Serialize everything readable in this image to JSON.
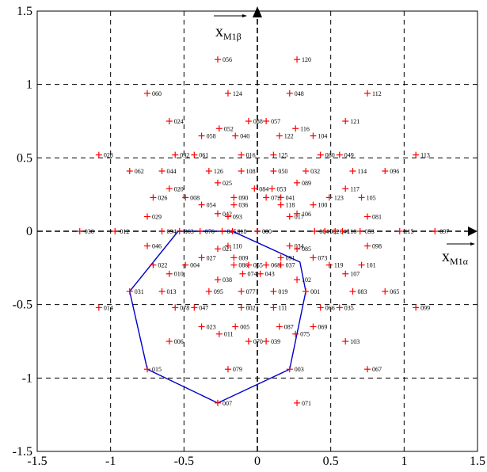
{
  "chart_data": {
    "type": "scatter",
    "xlim": [
      -1.5,
      1.5
    ],
    "ylim": [
      -1.5,
      1.5
    ],
    "x_ticks": [
      -1.5,
      -1,
      -0.5,
      0,
      0.5,
      1,
      1.5
    ],
    "x_tick_labels": [
      "-1.5",
      "-1",
      "-0.5",
      "0",
      "0.5",
      "1",
      "1.5"
    ],
    "y_ticks": [
      -1.5,
      -1,
      -0.5,
      0,
      0.5,
      1,
      1.5
    ],
    "y_tick_labels": [
      "-1.5",
      "-1",
      "-0.5",
      "0",
      "0.5",
      "1",
      "1.5"
    ],
    "grid": true,
    "grid_style": "dashed",
    "axis_x_label": {
      "main": "x",
      "sub": "M1α"
    },
    "axis_y_label": {
      "main": "x",
      "sub": "M1β"
    },
    "colors": {
      "points": "#ff0000",
      "polygon": "#0000cc",
      "grid": "#000000",
      "axes": "#000000"
    },
    "polygon": [
      [
        -0.54,
        0.0
      ],
      [
        -0.17,
        0.0
      ],
      [
        0.29,
        -0.21
      ],
      [
        0.33,
        -0.41
      ],
      [
        0.22,
        -0.94
      ],
      [
        -0.27,
        -1.17
      ],
      [
        -0.75,
        -0.94
      ],
      [
        -0.87,
        -0.41
      ]
    ],
    "points": [
      {
        "label": "120",
        "x": 0.27,
        "y": 1.17
      },
      {
        "label": "056",
        "x": -0.27,
        "y": 1.17
      },
      {
        "label": "060",
        "x": -0.75,
        "y": 0.94
      },
      {
        "label": "124",
        "x": -0.2,
        "y": 0.94
      },
      {
        "label": "048",
        "x": 0.22,
        "y": 0.94
      },
      {
        "label": "112",
        "x": 0.75,
        "y": 0.94
      },
      {
        "label": "024",
        "x": -0.6,
        "y": 0.75
      },
      {
        "label": "088",
        "x": -0.06,
        "y": 0.75
      },
      {
        "label": "057",
        "x": 0.06,
        "y": 0.75
      },
      {
        "label": "121",
        "x": 0.6,
        "y": 0.75
      },
      {
        "label": "052",
        "x": -0.26,
        "y": 0.7
      },
      {
        "label": "116",
        "x": 0.26,
        "y": 0.7
      },
      {
        "label": "058",
        "x": -0.38,
        "y": 0.65
      },
      {
        "label": "040",
        "x": -0.15,
        "y": 0.65
      },
      {
        "label": "122",
        "x": 0.15,
        "y": 0.65
      },
      {
        "label": "104",
        "x": 0.38,
        "y": 0.65
      },
      {
        "label": "028",
        "x": -1.08,
        "y": 0.52
      },
      {
        "label": "092",
        "x": -0.56,
        "y": 0.52
      },
      {
        "label": "061",
        "x": -0.43,
        "y": 0.52
      },
      {
        "label": "016",
        "x": -0.11,
        "y": 0.52
      },
      {
        "label": "125",
        "x": 0.11,
        "y": 0.52
      },
      {
        "label": "080",
        "x": 0.43,
        "y": 0.52
      },
      {
        "label": "049",
        "x": 0.56,
        "y": 0.52
      },
      {
        "label": "113",
        "x": 1.08,
        "y": 0.52
      },
      {
        "label": "062",
        "x": -0.87,
        "y": 0.41
      },
      {
        "label": "044",
        "x": -0.65,
        "y": 0.41
      },
      {
        "label": "126",
        "x": -0.33,
        "y": 0.41
      },
      {
        "label": "108",
        "x": -0.11,
        "y": 0.41
      },
      {
        "label": "050",
        "x": 0.11,
        "y": 0.41
      },
      {
        "label": "032",
        "x": 0.33,
        "y": 0.41
      },
      {
        "label": "114",
        "x": 0.65,
        "y": 0.41
      },
      {
        "label": "096",
        "x": 0.87,
        "y": 0.41
      },
      {
        "label": "025",
        "x": -0.27,
        "y": 0.33
      },
      {
        "label": "089",
        "x": 0.27,
        "y": 0.33
      },
      {
        "label": "020",
        "x": -0.6,
        "y": 0.29
      },
      {
        "label": "084",
        "x": -0.02,
        "y": 0.29
      },
      {
        "label": "053",
        "x": 0.1,
        "y": 0.29
      },
      {
        "label": "117",
        "x": 0.6,
        "y": 0.29
      },
      {
        "label": "026",
        "x": -0.71,
        "y": 0.23
      },
      {
        "label": "008",
        "x": -0.49,
        "y": 0.23
      },
      {
        "label": "090",
        "x": -0.16,
        "y": 0.23
      },
      {
        "label": "072",
        "x": 0.06,
        "y": 0.23
      },
      {
        "label": "041",
        "x": 0.16,
        "y": 0.23
      },
      {
        "label": "123",
        "x": 0.49,
        "y": 0.23
      },
      {
        "label": "105",
        "x": 0.71,
        "y": 0.23
      },
      {
        "label": "054",
        "x": -0.38,
        "y": 0.18
      },
      {
        "label": "036",
        "x": -0.16,
        "y": 0.18
      },
      {
        "label": "118",
        "x": 0.16,
        "y": 0.18
      },
      {
        "label": "100",
        "x": 0.38,
        "y": 0.18
      },
      {
        "label": "042",
        "x": -0.27,
        "y": 0.12
      },
      {
        "label": "106",
        "x": 0.27,
        "y": 0.12
      },
      {
        "label": "029",
        "x": -0.75,
        "y": 0.1
      },
      {
        "label": "093",
        "x": -0.2,
        "y": 0.1
      },
      {
        "label": "017",
        "x": 0.22,
        "y": 0.1
      },
      {
        "label": "081",
        "x": 0.75,
        "y": 0.1
      },
      {
        "label": "030",
        "x": -1.21,
        "y": 0.0
      },
      {
        "label": "012",
        "x": -0.97,
        "y": 0.0
      },
      {
        "label": "094",
        "x": -0.65,
        "y": 0.0
      },
      {
        "label": "063",
        "x": -0.53,
        "y": 0.0
      },
      {
        "label": "076",
        "x": -0.39,
        "y": 0.0
      },
      {
        "label": "045",
        "x": -0.24,
        "y": 0.0
      },
      {
        "label": "018",
        "x": -0.17,
        "y": 0.0
      },
      {
        "label": "000",
        "x": 0.0,
        "y": 0.0
      },
      {
        "label": "064",
        "x": 0.39,
        "y": 0.0
      },
      {
        "label": "082",
        "x": 0.46,
        "y": 0.0
      },
      {
        "label": "046",
        "x": 0.53,
        "y": 0.0
      },
      {
        "label": "110",
        "x": 0.58,
        "y": 0.0
      },
      {
        "label": "053",
        "x": 0.7,
        "y": 0.0
      },
      {
        "label": "115",
        "x": 0.97,
        "y": 0.0
      },
      {
        "label": "097",
        "x": 1.21,
        "y": 0.0
      },
      {
        "label": "110",
        "x": -0.2,
        "y": -0.1
      },
      {
        "label": "034",
        "x": 0.22,
        "y": -0.1
      },
      {
        "label": "046",
        "x": -0.75,
        "y": -0.1
      },
      {
        "label": "098",
        "x": 0.75,
        "y": -0.1
      },
      {
        "label": "021",
        "x": -0.27,
        "y": -0.12
      },
      {
        "label": "085",
        "x": 0.27,
        "y": -0.12
      },
      {
        "label": "027",
        "x": -0.38,
        "y": -0.18
      },
      {
        "label": "009",
        "x": -0.16,
        "y": -0.18
      },
      {
        "label": "091",
        "x": 0.16,
        "y": -0.18
      },
      {
        "label": "073",
        "x": 0.38,
        "y": -0.18
      },
      {
        "label": "022",
        "x": -0.71,
        "y": -0.23
      },
      {
        "label": "004",
        "x": -0.49,
        "y": -0.23
      },
      {
        "label": "086",
        "x": -0.16,
        "y": -0.23
      },
      {
        "label": "055",
        "x": -0.06,
        "y": -0.23
      },
      {
        "label": "068",
        "x": 0.06,
        "y": -0.23
      },
      {
        "label": "037",
        "x": 0.16,
        "y": -0.23
      },
      {
        "label": "119",
        "x": 0.49,
        "y": -0.23
      },
      {
        "label": "101",
        "x": 0.71,
        "y": -0.23
      },
      {
        "label": "010",
        "x": -0.6,
        "y": -0.29
      },
      {
        "label": "074",
        "x": -0.1,
        "y": -0.29
      },
      {
        "label": "043",
        "x": 0.02,
        "y": -0.29
      },
      {
        "label": "107",
        "x": 0.6,
        "y": -0.29
      },
      {
        "label": "038",
        "x": -0.27,
        "y": -0.33
      },
      {
        "label": "102",
        "x": 0.27,
        "y": -0.33
      },
      {
        "label": "031",
        "x": -0.87,
        "y": -0.41
      },
      {
        "label": "013",
        "x": -0.65,
        "y": -0.41
      },
      {
        "label": "095",
        "x": -0.33,
        "y": -0.41
      },
      {
        "label": "077",
        "x": -0.11,
        "y": -0.41
      },
      {
        "label": "019",
        "x": 0.11,
        "y": -0.41
      },
      {
        "label": "001",
        "x": 0.33,
        "y": -0.41
      },
      {
        "label": "083",
        "x": 0.65,
        "y": -0.41
      },
      {
        "label": "065",
        "x": 0.87,
        "y": -0.41
      },
      {
        "label": "014",
        "x": -1.08,
        "y": -0.52
      },
      {
        "label": "078",
        "x": -0.56,
        "y": -0.52
      },
      {
        "label": "047",
        "x": -0.43,
        "y": -0.52
      },
      {
        "label": "002",
        "x": -0.11,
        "y": -0.52
      },
      {
        "label": "111",
        "x": 0.11,
        "y": -0.52
      },
      {
        "label": "066",
        "x": 0.43,
        "y": -0.52
      },
      {
        "label": "035",
        "x": 0.56,
        "y": -0.52
      },
      {
        "label": "099",
        "x": 1.08,
        "y": -0.52
      },
      {
        "label": "023",
        "x": -0.38,
        "y": -0.65
      },
      {
        "label": "005",
        "x": -0.15,
        "y": -0.65
      },
      {
        "label": "087",
        "x": 0.15,
        "y": -0.65
      },
      {
        "label": "069",
        "x": 0.38,
        "y": -0.65
      },
      {
        "label": "011",
        "x": -0.26,
        "y": -0.7
      },
      {
        "label": "075",
        "x": 0.26,
        "y": -0.7
      },
      {
        "label": "006",
        "x": -0.6,
        "y": -0.75
      },
      {
        "label": "070",
        "x": -0.06,
        "y": -0.75
      },
      {
        "label": "039",
        "x": 0.06,
        "y": -0.75
      },
      {
        "label": "103",
        "x": 0.6,
        "y": -0.75
      },
      {
        "label": "015",
        "x": -0.75,
        "y": -0.94
      },
      {
        "label": "079",
        "x": -0.2,
        "y": -0.94
      },
      {
        "label": "003",
        "x": 0.22,
        "y": -0.94
      },
      {
        "label": "067",
        "x": 0.75,
        "y": -0.94
      },
      {
        "label": "007",
        "x": -0.27,
        "y": -1.17
      },
      {
        "label": "071",
        "x": 0.27,
        "y": -1.17
      }
    ]
  }
}
